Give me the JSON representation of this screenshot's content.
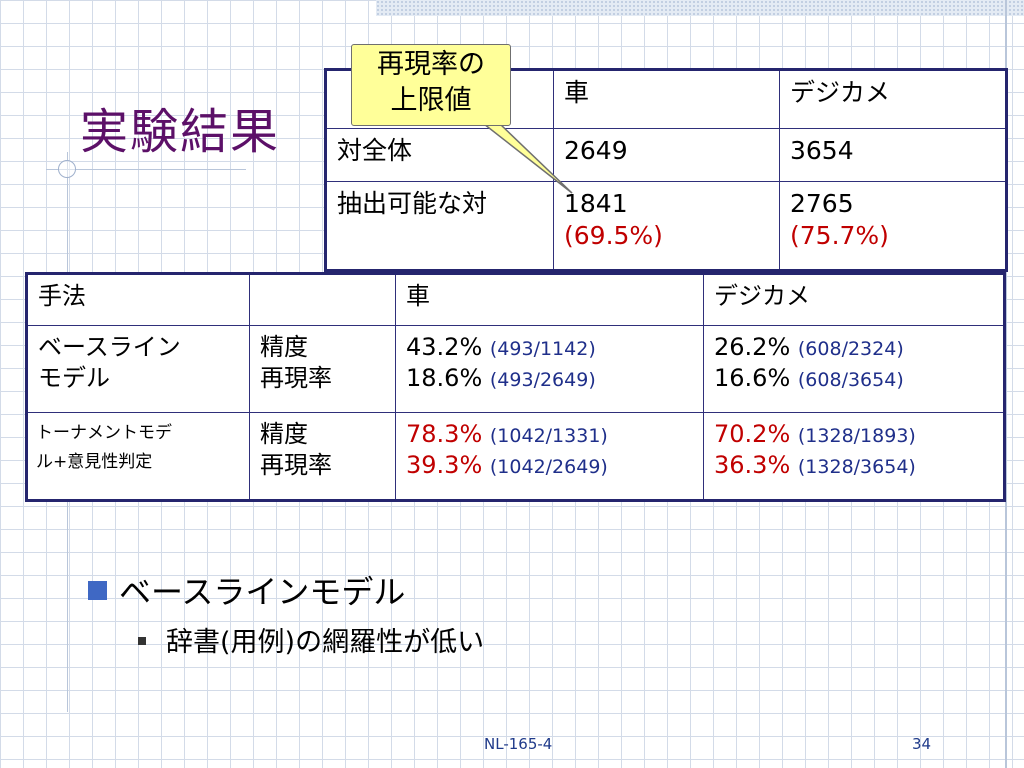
{
  "title": "実験結果",
  "callout": {
    "line1": "再現率の",
    "line2": "上限値"
  },
  "upper_table": {
    "header": [
      "",
      "車",
      "デジカメ"
    ],
    "rows": [
      {
        "label": "対全体",
        "car": "2649",
        "camera": "3654"
      },
      {
        "label": "抽出可能な対",
        "car": "1841",
        "car_pct": "(69.5%)",
        "camera": "2765",
        "camera_pct": "(75.7%)"
      }
    ]
  },
  "main_table": {
    "header": [
      "手法",
      "",
      "車",
      "デジカメ"
    ],
    "rows": [
      {
        "method": "ベースライン\nモデル",
        "metrics": "精度\n再現率",
        "car": [
          {
            "value": "43.2%",
            "frac": "(493/1142)"
          },
          {
            "value": "18.6%",
            "frac": "(493/2649)"
          }
        ],
        "camera": [
          {
            "value": "26.2%",
            "frac": "(608/2324)"
          },
          {
            "value": "16.6%",
            "frac": "(608/3654)"
          }
        ]
      },
      {
        "method": "トーナメントモデ\nル+意見性判定",
        "metrics": "精度\n再現率",
        "car": [
          {
            "value": "78.3%",
            "frac": "(1042/1331)"
          },
          {
            "value": "39.3%",
            "frac": "(1042/2649)"
          }
        ],
        "camera": [
          {
            "value": "70.2%",
            "frac": "(1328/1893)"
          },
          {
            "value": "36.3%",
            "frac": "(1328/3654)"
          }
        ]
      }
    ]
  },
  "bullets": {
    "level1": "ベースラインモデル",
    "level2": "辞書(用例)の網羅性が低い"
  },
  "footer": {
    "center": "NL-165-4",
    "page": "34"
  },
  "colors": {
    "title": "#5c1068",
    "highlight": "#c00000",
    "fraction": "#1f2f8a",
    "bullet": "#3f68c4",
    "callout_fill": "#ffff99"
  }
}
